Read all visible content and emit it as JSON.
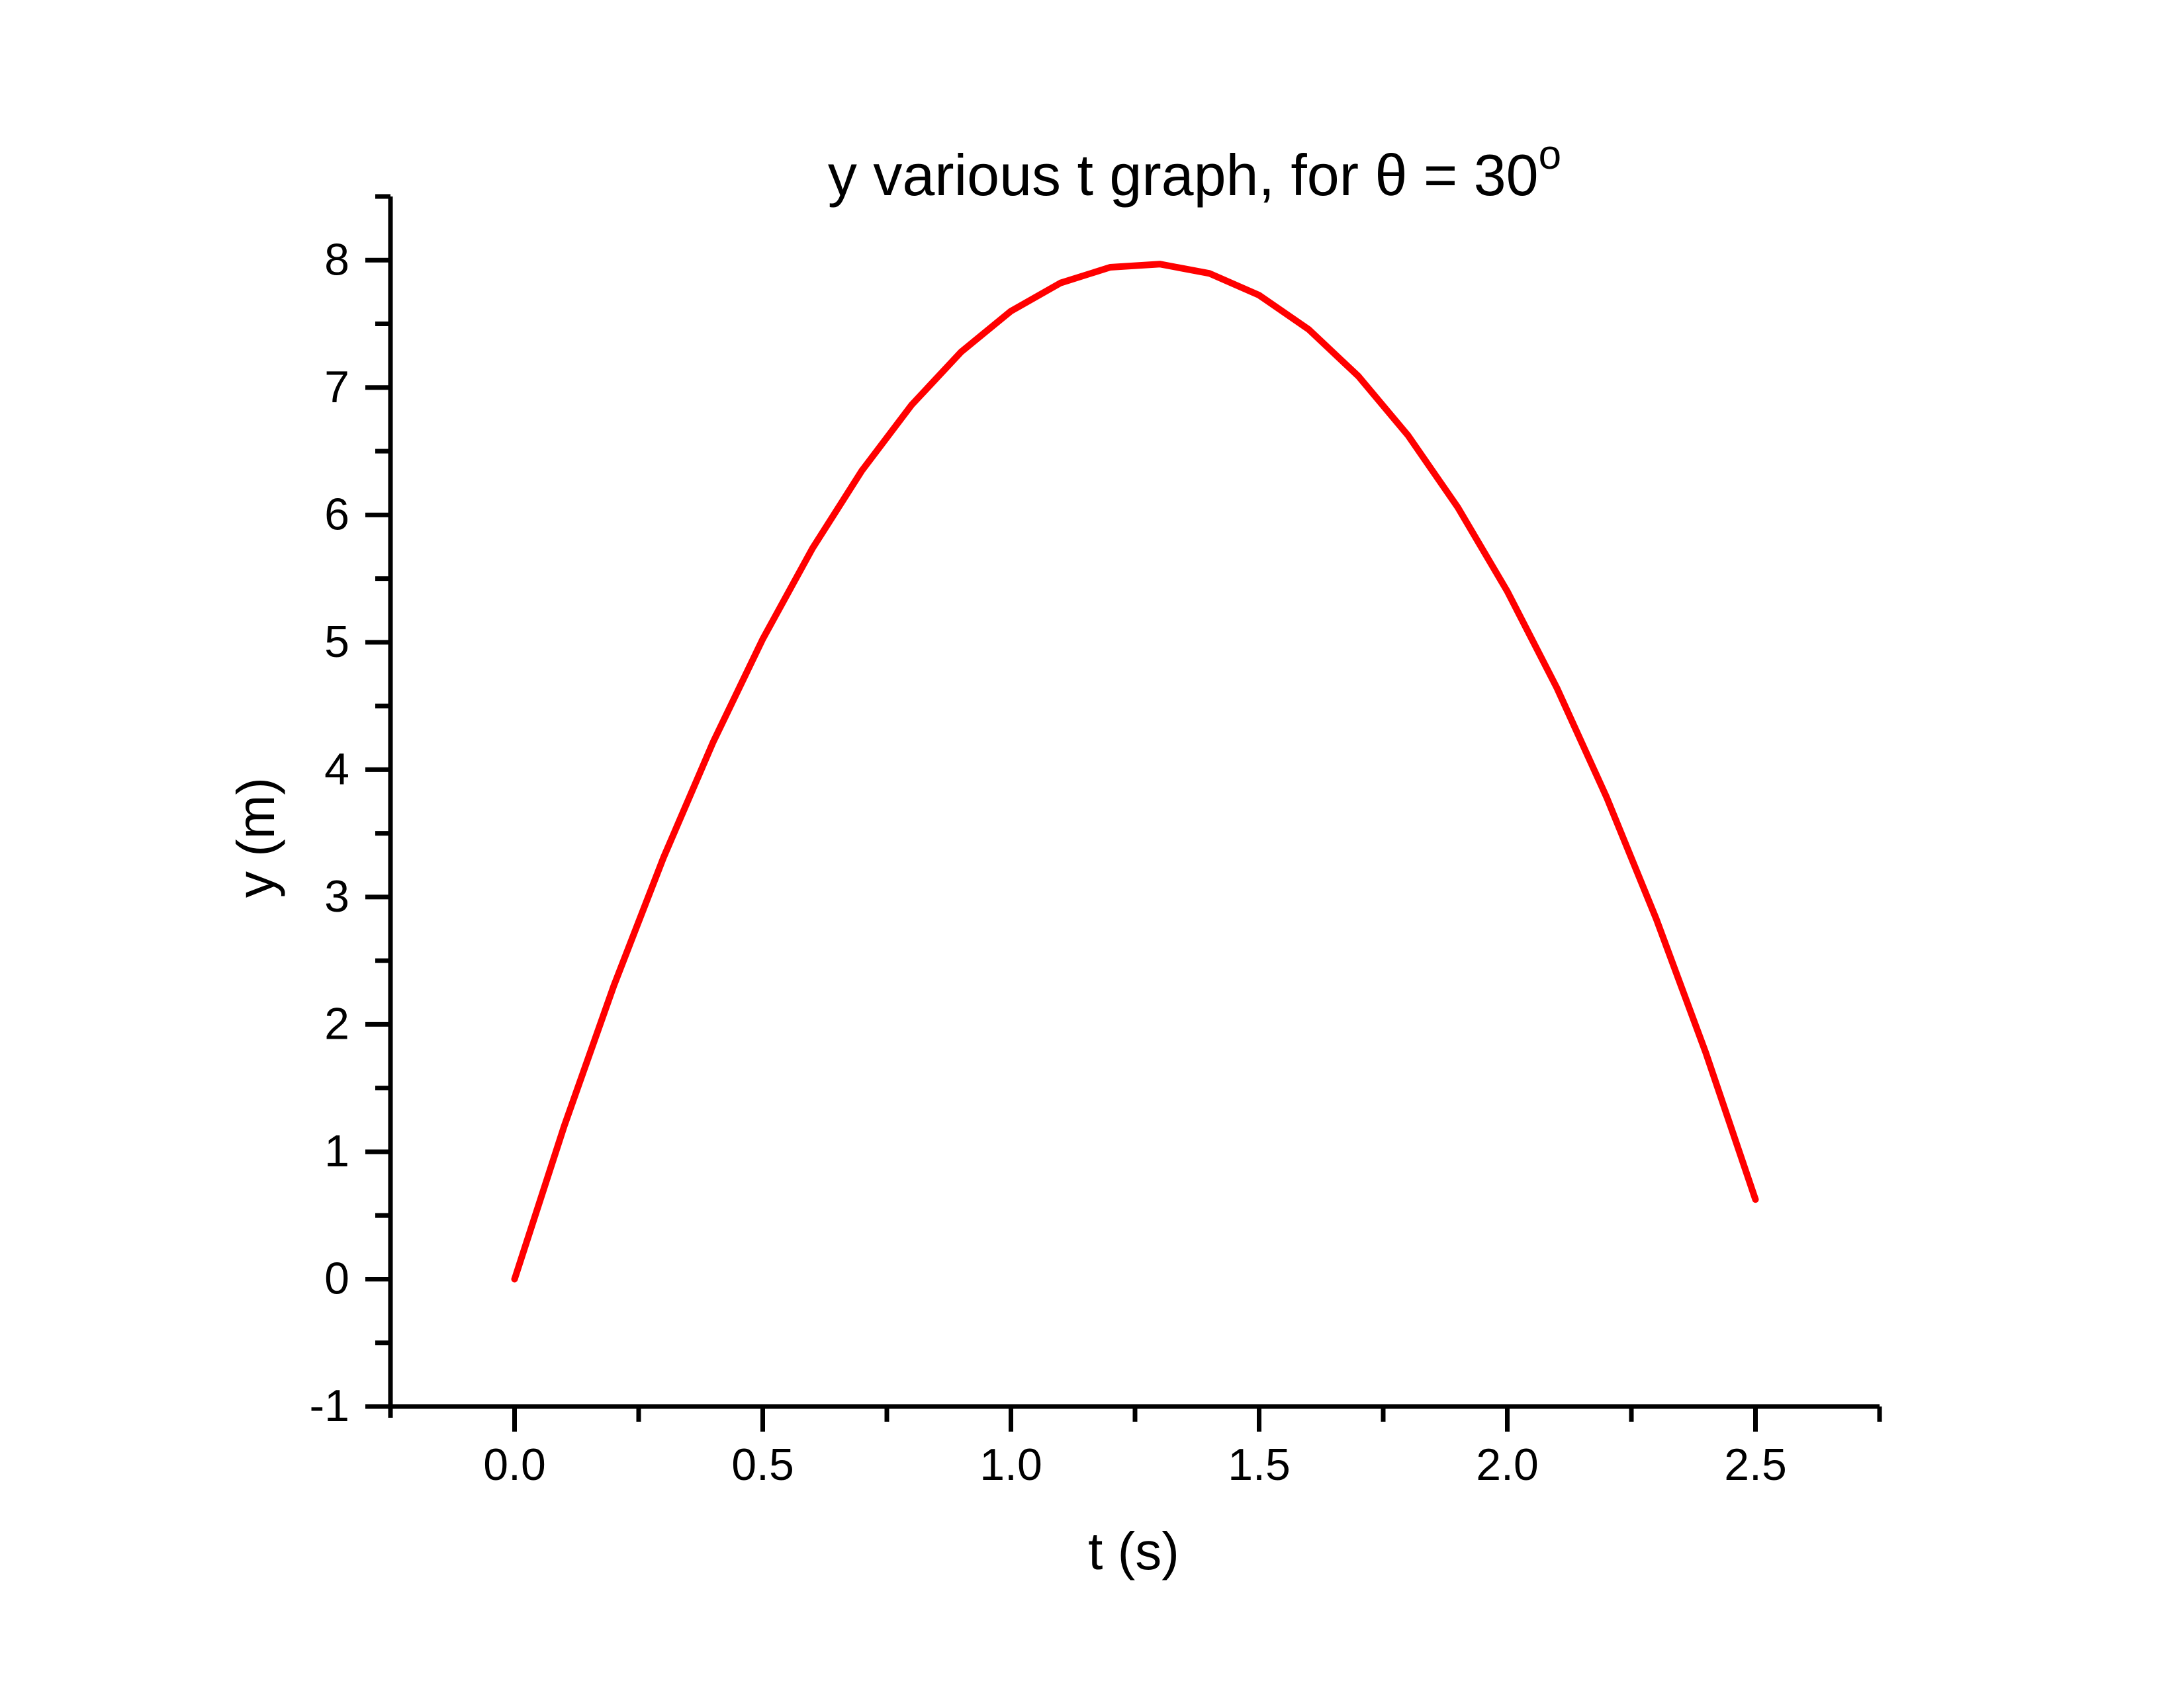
{
  "figure": {
    "background": "#FFFFFF",
    "title_main": "y various t graph, for θ = 30",
    "title_superscript": "o",
    "x_axis_title": "t (s)",
    "y_axis_title": "y (m)"
  },
  "chart_data": {
    "type": "line",
    "title": "y various t graph, for θ = 30°",
    "xlabel": "t (s)",
    "ylabel": "y (m)",
    "xlim": [
      -0.25,
      2.75
    ],
    "ylim": [
      -1,
      8.5
    ],
    "grid": false,
    "legend": false,
    "axis_color": "#000000",
    "x_major_ticks": [
      0.0,
      0.5,
      1.0,
      1.5,
      2.0,
      2.5
    ],
    "x_tick_labels": [
      "0.0",
      "0.5",
      "1.0",
      "1.5",
      "2.0",
      "2.5"
    ],
    "x_minor_ticks": [
      0.25,
      0.75,
      1.25,
      1.75,
      2.25,
      2.75
    ],
    "y_major_ticks": [
      -1,
      0,
      1,
      2,
      3,
      4,
      5,
      6,
      7,
      8
    ],
    "y_tick_labels": [
      "-1",
      "0",
      "1",
      "2",
      "3",
      "4",
      "5",
      "6",
      "7",
      "8"
    ],
    "y_minor_ticks": [
      -0.5,
      0.5,
      1.5,
      2.5,
      3.5,
      4.5,
      5.5,
      6.5,
      7.5,
      8.5
    ],
    "series": [
      {
        "color": "#FF0000",
        "x": [
          0.0,
          0.1,
          0.2,
          0.3,
          0.4,
          0.5,
          0.6,
          0.7,
          0.8,
          0.9,
          1.0,
          1.1,
          1.2,
          1.3,
          1.4,
          1.5,
          1.6,
          1.7,
          1.8,
          1.9,
          2.0,
          2.1,
          2.2,
          2.3,
          2.4,
          2.5
        ],
        "y": [
          0.0,
          1.201,
          2.304,
          3.309,
          4.216,
          5.025,
          5.736,
          6.349,
          6.864,
          7.281,
          7.6,
          7.821,
          7.944,
          7.969,
          7.896,
          7.725,
          7.456,
          7.089,
          6.624,
          6.061,
          5.4,
          4.641,
          3.784,
          2.829,
          1.776,
          0.625
        ]
      }
    ]
  }
}
